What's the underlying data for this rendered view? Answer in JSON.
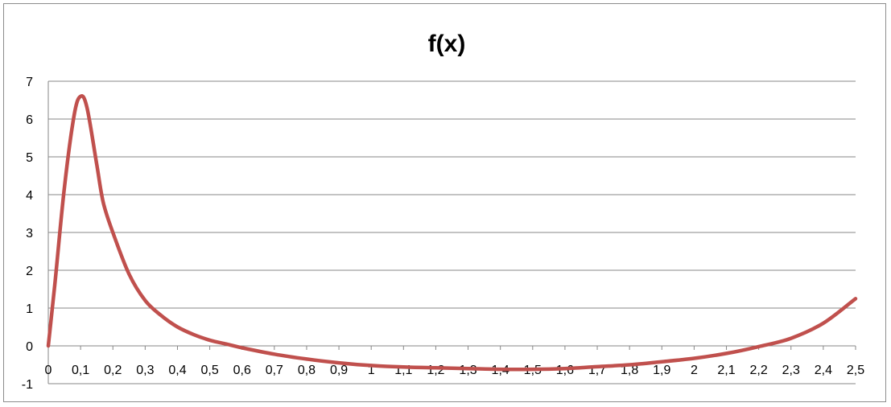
{
  "chart_data": {
    "type": "line",
    "title": "f(x)",
    "xlabel": "",
    "ylabel": "",
    "grid": true,
    "legend": "none",
    "ylim": [
      -1,
      7
    ],
    "y_ticks": [
      -1,
      0,
      1,
      2,
      3,
      4,
      5,
      6,
      7
    ],
    "categories": [
      "0",
      "0,1",
      "0,2",
      "0,3",
      "0,4",
      "0,5",
      "0,6",
      "0,7",
      "0,8",
      "0,9",
      "1",
      "1,1",
      "1,2",
      "1,3",
      "1,4",
      "1,5",
      "1,6",
      "1,7",
      "1,8",
      "1,9",
      "2",
      "2,1",
      "2,2",
      "2,3",
      "2,4",
      "2,5"
    ],
    "line_color": "#c0504d",
    "grid_color": "#878787",
    "series": [
      {
        "x": [
          0,
          0.02,
          0.05,
          0.08,
          0.1,
          0.12,
          0.15,
          0.17,
          0.2,
          0.25,
          0.3,
          0.35,
          0.4,
          0.45,
          0.5,
          0.55,
          0.6,
          0.7,
          0.8,
          0.9,
          1.0,
          1.1,
          1.2,
          1.3,
          1.4,
          1.5,
          1.6,
          1.7,
          1.8,
          1.9,
          2.0,
          2.1,
          2.2,
          2.3,
          2.4,
          2.5
        ],
        "y": [
          0,
          1.6,
          4.2,
          6.1,
          6.6,
          6.3,
          4.8,
          3.8,
          3.0,
          1.9,
          1.2,
          0.8,
          0.5,
          0.3,
          0.15,
          0.05,
          -0.05,
          -0.22,
          -0.35,
          -0.45,
          -0.52,
          -0.56,
          -0.58,
          -0.6,
          -0.62,
          -0.62,
          -0.6,
          -0.55,
          -0.5,
          -0.42,
          -0.33,
          -0.2,
          -0.02,
          0.2,
          0.6,
          1.25
        ]
      }
    ]
  }
}
